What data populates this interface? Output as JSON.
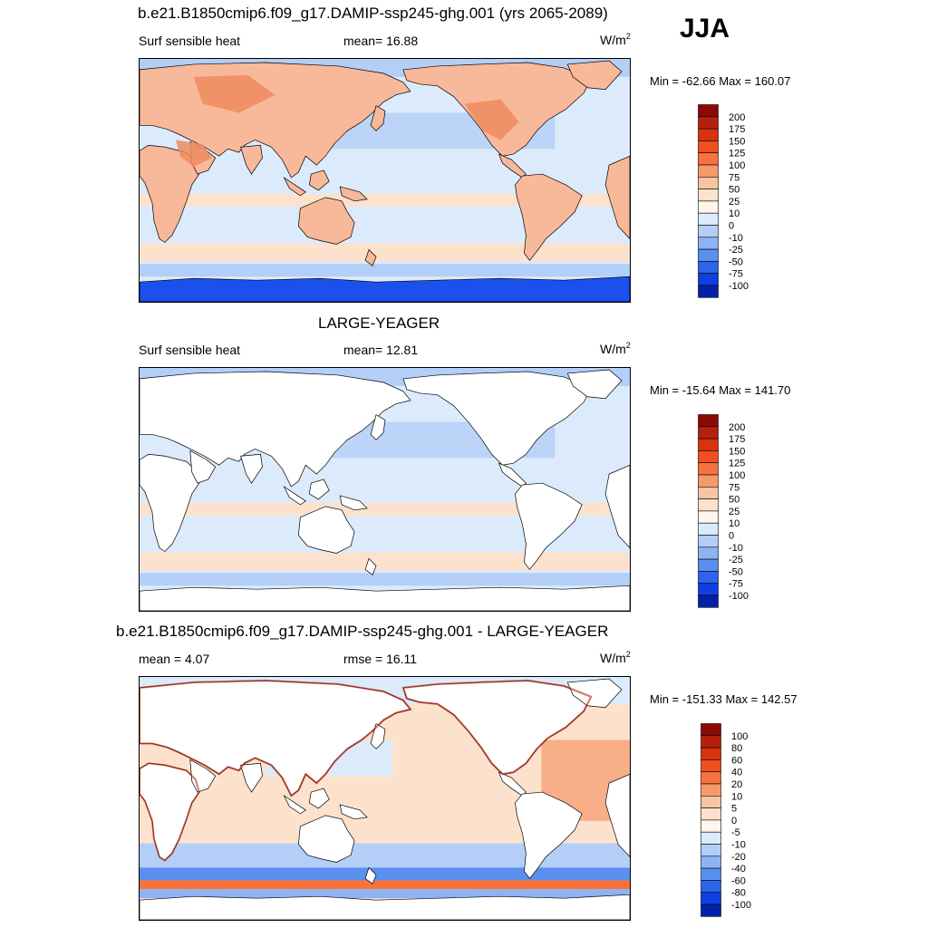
{
  "season": "JJA",
  "panels": [
    {
      "title": "b.e21.B1850cmip6.f09_g17.DAMIP-ssp245-ghg.001 (yrs 2065-2089)",
      "left_label": "Surf sensible heat",
      "center_label": "mean=  16.88",
      "units": "W/m",
      "units_sup": "2",
      "minmax": "Min = -62.66 Max = 160.07",
      "style": "case"
    },
    {
      "title": "LARGE-YEAGER",
      "left_label": "Surf sensible heat",
      "center_label": "mean=  12.81",
      "units": "W/m",
      "units_sup": "2",
      "minmax": "Min = -15.64 Max = 141.70",
      "style": "obs"
    },
    {
      "title": "b.e21.B1850cmip6.f09_g17.DAMIP-ssp245-ghg.001 - LARGE-YEAGER",
      "left_label": "mean =   4.07",
      "center_label": "rmse =  16.11",
      "units": "W/m",
      "units_sup": "2",
      "minmax": "Min = -151.33 Max = 142.57",
      "style": "diff"
    }
  ],
  "colorbars": {
    "main": {
      "labels": [
        "200",
        "175",
        "150",
        "125",
        "100",
        "75",
        "50",
        "25",
        "10",
        "0",
        "-10",
        "-25",
        "-50",
        "-75",
        "-100"
      ],
      "colors": [
        "#8b0a06",
        "#b5210c",
        "#d8320f",
        "#f0501f",
        "#f6723f",
        "#f79a6a",
        "#fac4a2",
        "#fce2cd",
        "#fff5ec",
        "#dbebfb",
        "#b3cef7",
        "#8db3f2",
        "#5a8fee",
        "#2d64ec",
        "#0d3fe3",
        "#0520a8"
      ]
    },
    "diff": {
      "labels": [
        "100",
        "80",
        "60",
        "40",
        "20",
        "10",
        "5",
        "0",
        "-5",
        "-10",
        "-20",
        "-40",
        "-60",
        "-80",
        "-100"
      ],
      "colors": [
        "#8b0a06",
        "#b5210c",
        "#d8320f",
        "#f0501f",
        "#f6723f",
        "#f79a6a",
        "#fac4a2",
        "#fce2cd",
        "#fff5ec",
        "#dbebfb",
        "#b3cef7",
        "#8db3f2",
        "#5a8fee",
        "#2d64ec",
        "#0d3fe3",
        "#0520a8"
      ]
    }
  },
  "colors": {
    "land_warm": "#f8b89a",
    "land_hot": "#f08a5e",
    "ocean": "#dbebfb",
    "ocean_cool": "#b3cef7",
    "antarctic": "#1c50ec",
    "diff_ocean": "#fce2cd"
  }
}
